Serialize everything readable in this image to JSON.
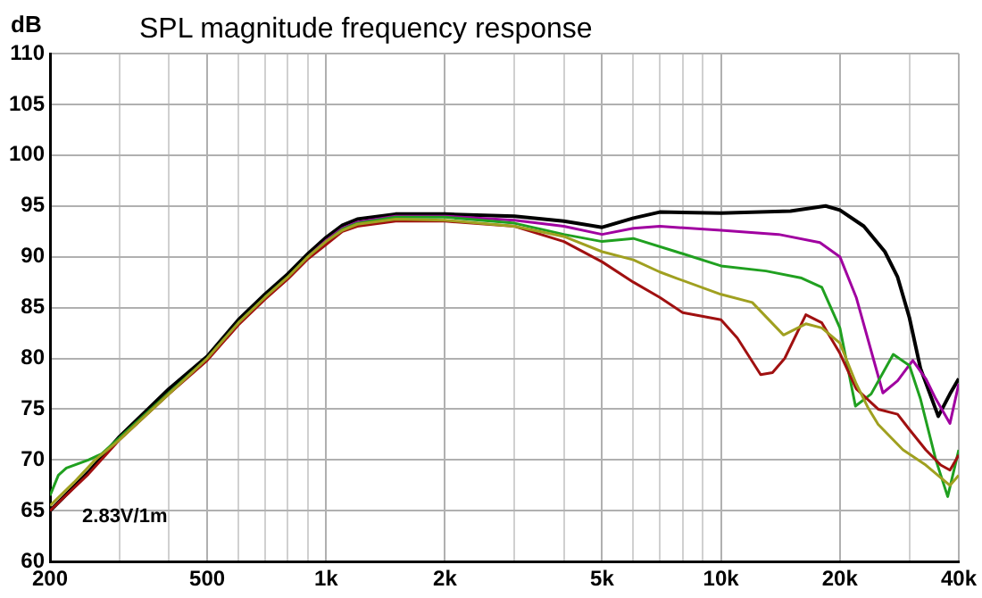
{
  "chart_data": {
    "type": "line",
    "title": "SPL magnitude frequency response",
    "ylabel": "dB",
    "annotations": [
      "2.83V/1m"
    ],
    "log": "x",
    "grid": true,
    "legend": false,
    "marker": "none",
    "line_style": "solid",
    "xlim": [
      200,
      40000
    ],
    "ylim": [
      60,
      110
    ],
    "xticks": [
      200,
      {
        "value": 300,
        "label": null
      },
      {
        "value": 400,
        "label": null
      },
      500,
      {
        "value": 600,
        "label": null
      },
      {
        "value": 700,
        "label": null
      },
      {
        "value": 800,
        "label": null
      },
      {
        "value": 900,
        "label": null
      },
      {
        "value": 1000,
        "label": "1k"
      },
      {
        "value": 2000,
        "label": "2k"
      },
      {
        "value": 3000,
        "label": null
      },
      {
        "value": 4000,
        "label": null
      },
      {
        "value": 5000,
        "label": "5k"
      },
      {
        "value": 6000,
        "label": null
      },
      {
        "value": 7000,
        "label": null
      },
      {
        "value": 8000,
        "label": null
      },
      {
        "value": 9000,
        "label": null
      },
      {
        "value": 10000,
        "label": "10k"
      },
      {
        "value": 20000,
        "label": "20k"
      },
      {
        "value": 30000,
        "label": null
      },
      {
        "value": 40000,
        "label": "40k"
      }
    ],
    "yticks": [
      60,
      65,
      70,
      75,
      80,
      85,
      90,
      95,
      100,
      105,
      110
    ],
    "series": [
      {
        "color": "#a0a020",
        "x": [
          200,
          230,
          260,
          300,
          400,
          500,
          600,
          700,
          800,
          900,
          1000,
          1100,
          1200,
          1500,
          2000,
          3000,
          4000,
          5000,
          6000,
          7000,
          7700,
          10000,
          12000,
          14400,
          16400,
          18000,
          20000,
          22000,
          23600,
          25000,
          28900,
          33000,
          38000,
          40000
        ],
        "values": [
          65.5,
          67.8,
          70,
          72,
          76.5,
          80,
          83.5,
          86,
          88,
          90,
          91.5,
          92.6,
          93.2,
          93.7,
          93.6,
          93,
          92,
          90.5,
          89.7,
          88.5,
          87.9,
          86.3,
          85.5,
          82.3,
          83.4,
          83,
          81.5,
          77.5,
          75.1,
          73.5,
          71,
          69.5,
          67.5,
          68.5
        ]
      },
      {
        "color": "#a01010",
        "x": [
          200,
          250,
          300,
          400,
          500,
          600,
          700,
          800,
          900,
          1000,
          1100,
          1200,
          1500,
          2000,
          3000,
          4000,
          5000,
          6000,
          7000,
          8000,
          10000,
          11000,
          12600,
          13500,
          14500,
          16400,
          18000,
          20000,
          22000,
          25000,
          28000,
          30000,
          33000,
          36000,
          38000,
          40000
        ],
        "values": [
          65,
          68.6,
          72,
          76.5,
          79.8,
          83.3,
          85.8,
          87.8,
          89.8,
          91.2,
          92.5,
          93,
          93.5,
          93.5,
          93,
          91.5,
          89.5,
          87.5,
          86,
          84.5,
          83.8,
          82,
          78.4,
          78.6,
          80,
          84.3,
          83.5,
          80.5,
          77,
          75,
          74.5,
          73,
          71,
          69.5,
          69,
          70.5
        ]
      },
      {
        "color": "#20a020",
        "x": [
          200,
          210,
          220,
          250,
          270,
          300,
          400,
          500,
          600,
          700,
          800,
          900,
          1000,
          1100,
          1200,
          1500,
          2000,
          3000,
          4000,
          5000,
          6000,
          7700,
          10000,
          13000,
          16000,
          18000,
          20000,
          21900,
          24000,
          27300,
          30000,
          32000,
          35000,
          37500,
          40000
        ],
        "values": [
          66.5,
          68.5,
          69.2,
          70,
          70.6,
          72.2,
          76.6,
          80,
          83.5,
          86,
          88,
          90,
          91.5,
          92.7,
          93.3,
          93.9,
          93.9,
          93.3,
          92.2,
          91.5,
          91.8,
          90.5,
          89.1,
          88.6,
          87.9,
          87,
          83,
          75.3,
          76.5,
          80.4,
          79.3,
          76,
          70,
          66.4,
          71
        ]
      },
      {
        "color": "#a000a0",
        "x": [
          900,
          1000,
          1100,
          1200,
          1500,
          2000,
          3000,
          4000,
          5000,
          6000,
          7000,
          10000,
          14000,
          17800,
          20000,
          22000,
          25700,
          28000,
          30600,
          33000,
          35000,
          38000,
          40000
        ],
        "values": [
          90,
          91.6,
          92.8,
          93.4,
          94,
          94,
          93.6,
          93,
          92.2,
          92.8,
          93,
          92.6,
          92.2,
          91.4,
          90,
          86,
          76.6,
          77.8,
          79.8,
          78,
          76,
          73.6,
          77.5
        ]
      },
      {
        "color": "#000000",
        "x": [
          200,
          250,
          300,
          400,
          500,
          600,
          700,
          800,
          900,
          1000,
          1100,
          1200,
          1500,
          2000,
          3000,
          4000,
          5000,
          6000,
          7000,
          10000,
          15000,
          18400,
          20000,
          23000,
          26000,
          28000,
          30000,
          32000,
          35500,
          38000,
          40000
        ],
        "values": [
          65,
          68.8,
          72.3,
          77,
          80.2,
          83.8,
          86.3,
          88.3,
          90.3,
          91.9,
          93.1,
          93.7,
          94.2,
          94.2,
          94,
          93.5,
          92.9,
          93.8,
          94.4,
          94.3,
          94.5,
          95,
          94.6,
          93,
          90.5,
          88,
          84,
          79,
          74.3,
          76.5,
          78
        ]
      }
    ]
  }
}
